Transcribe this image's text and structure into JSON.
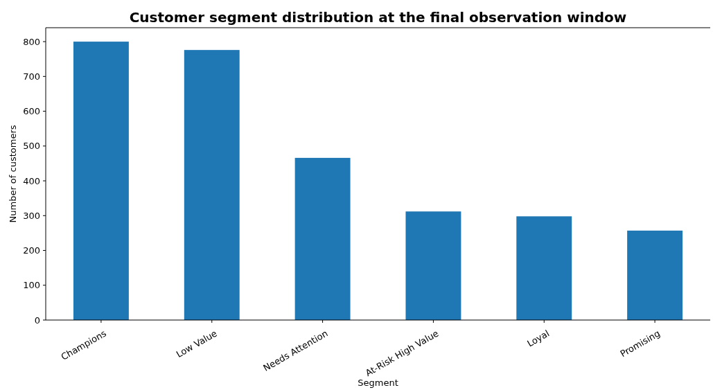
{
  "chart_data": {
    "type": "bar",
    "title": "Customer segment distribution at the final observation window",
    "xlabel": "Segment",
    "ylabel": "Number of customers",
    "categories": [
      "Champions",
      "Low Value",
      "Needs Attention",
      "At-Risk High Value",
      "Loyal",
      "Promising"
    ],
    "values": [
      800,
      776,
      466,
      312,
      298,
      257
    ],
    "color": "#1f77b4",
    "ylim": [
      0,
      840
    ],
    "yticks": [
      0,
      100,
      200,
      300,
      400,
      500,
      600,
      700,
      800
    ]
  }
}
